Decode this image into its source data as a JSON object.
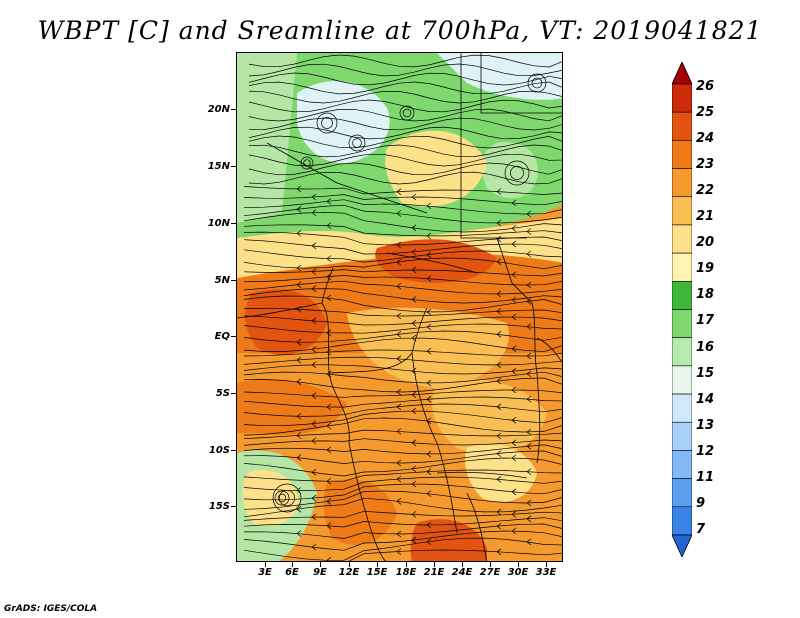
{
  "title": "WBPT [C] and Sreamline at 700hPa, VT: 2019041821",
  "credit": "GrADS: IGES/COLA",
  "latitude_labels": [
    "20N",
    "15N",
    "10N",
    "5N",
    "EQ",
    "5S",
    "10S",
    "15S"
  ],
  "longitude_labels": [
    "3E",
    "6E",
    "9E",
    "12E",
    "15E",
    "18E",
    "21E",
    "24E",
    "27E",
    "30E",
    "33E"
  ],
  "colorbar": {
    "labels": [
      "7",
      "9",
      "11",
      "12",
      "13",
      "14",
      "15",
      "16",
      "17",
      "18",
      "19",
      "20",
      "21",
      "22",
      "23",
      "24",
      "25",
      "26"
    ],
    "colors": [
      "#2166d8",
      "#3a83e6",
      "#5c9ef0",
      "#82b8f5",
      "#a9d0f8",
      "#d0e8fb",
      "#e8f6ee",
      "#b8eab0",
      "#7ed86e",
      "#3fb83a",
      "#fff4b0",
      "#fde08a",
      "#f9bf55",
      "#f59a2e",
      "#ee7a18",
      "#e35410",
      "#cc2a08",
      "#a50000"
    ]
  },
  "map_colors": {
    "green_light": "#b5e6a5",
    "green": "#7ed86e",
    "green_dark": "#3fb83a",
    "pale_blue": "#dff2f6",
    "yellow": "#fde08a",
    "light_orange": "#f9bf55",
    "orange": "#f59a2e",
    "dark_orange": "#ee7a18",
    "red_orange": "#e35410"
  }
}
